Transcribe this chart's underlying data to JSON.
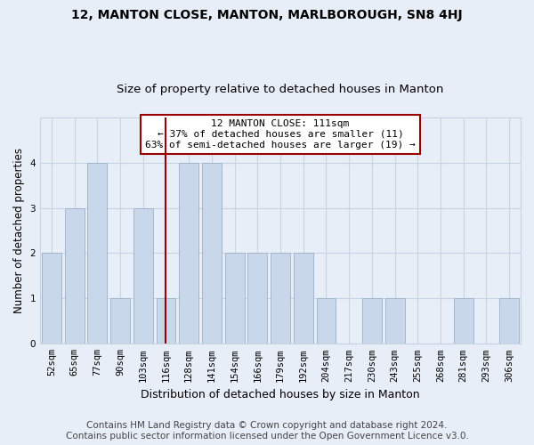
{
  "title1": "12, MANTON CLOSE, MANTON, MARLBOROUGH, SN8 4HJ",
  "title2": "Size of property relative to detached houses in Manton",
  "xlabel": "Distribution of detached houses by size in Manton",
  "ylabel": "Number of detached properties",
  "categories": [
    "52sqm",
    "65sqm",
    "77sqm",
    "90sqm",
    "103sqm",
    "116sqm",
    "128sqm",
    "141sqm",
    "154sqm",
    "166sqm",
    "179sqm",
    "192sqm",
    "204sqm",
    "217sqm",
    "230sqm",
    "243sqm",
    "255sqm",
    "268sqm",
    "281sqm",
    "293sqm",
    "306sqm"
  ],
  "values": [
    2,
    3,
    4,
    1,
    3,
    1,
    4,
    4,
    2,
    2,
    2,
    2,
    1,
    0,
    1,
    1,
    0,
    0,
    1,
    0,
    1
  ],
  "bar_color": "#c8d8ea",
  "bar_edgecolor": "#9ab0c8",
  "vline_x_index": 5,
  "vline_color": "#990000",
  "annotation_text": "12 MANTON CLOSE: 111sqm\n← 37% of detached houses are smaller (11)\n63% of semi-detached houses are larger (19) →",
  "annotation_box_color": "#ffffff",
  "annotation_box_edgecolor": "#990000",
  "ylim": [
    0,
    5
  ],
  "yticks": [
    0,
    1,
    2,
    3,
    4
  ],
  "grid_color": "#c8d4e4",
  "background_color": "#e8eef8",
  "footer1": "Contains HM Land Registry data © Crown copyright and database right 2024.",
  "footer2": "Contains public sector information licensed under the Open Government Licence v3.0.",
  "title1_fontsize": 10,
  "title2_fontsize": 9.5,
  "xlabel_fontsize": 9,
  "ylabel_fontsize": 8.5,
  "tick_fontsize": 7.5,
  "annotation_fontsize": 8,
  "footer_fontsize": 7.5
}
